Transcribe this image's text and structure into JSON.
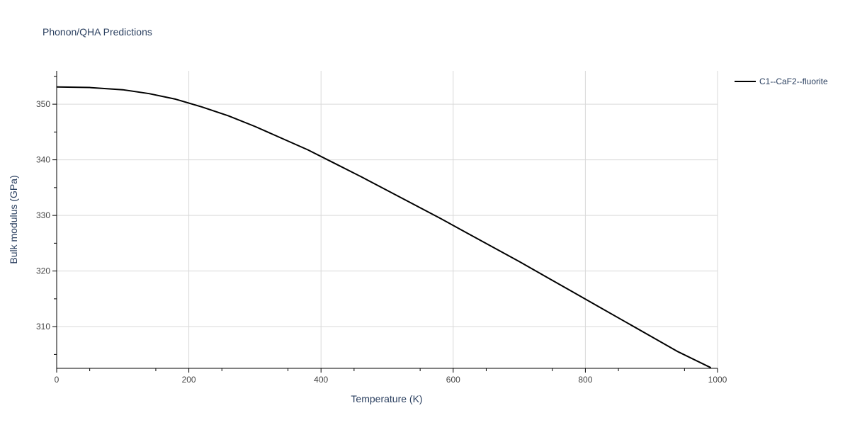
{
  "chart_data": {
    "type": "line",
    "title": "Phonon/QHA Predictions",
    "xlabel": "Temperature (K)",
    "ylabel": "Bulk modulus (GPa)",
    "xlim": [
      0,
      1000
    ],
    "ylim": [
      302.5,
      356
    ],
    "x_ticks": [
      0,
      200,
      400,
      600,
      800,
      1000
    ],
    "x_tick_labels": [
      "0",
      "200",
      "400",
      "600",
      "800",
      "1000"
    ],
    "y_ticks": [
      310,
      320,
      330,
      340,
      350
    ],
    "y_tick_labels": [
      "310",
      "320",
      "330",
      "340",
      "350"
    ],
    "grid": true,
    "legend_position": "top-right",
    "series": [
      {
        "name": "C1--CaF2--fluorite",
        "color": "#000000",
        "x": [
          0,
          50,
          100,
          140,
          180,
          220,
          260,
          300,
          340,
          380,
          420,
          460,
          500,
          540,
          580,
          620,
          660,
          700,
          740,
          780,
          820,
          860,
          900,
          940,
          990
        ],
        "y": [
          353.1,
          353.0,
          352.6,
          351.9,
          350.9,
          349.5,
          347.9,
          346.0,
          343.9,
          341.8,
          339.4,
          337.0,
          334.5,
          332.0,
          329.5,
          326.9,
          324.3,
          321.7,
          319.0,
          316.3,
          313.6,
          310.9,
          308.2,
          305.5,
          302.6
        ]
      }
    ]
  }
}
